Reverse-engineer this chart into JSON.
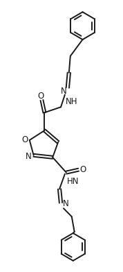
{
  "bg_color": "#ffffff",
  "line_color": "#1a1a1a",
  "line_width": 1.4,
  "figsize": [
    1.78,
    3.92
  ],
  "dpi": 100,
  "xlim": [
    0,
    178
  ],
  "ylim": [
    0,
    392
  ]
}
